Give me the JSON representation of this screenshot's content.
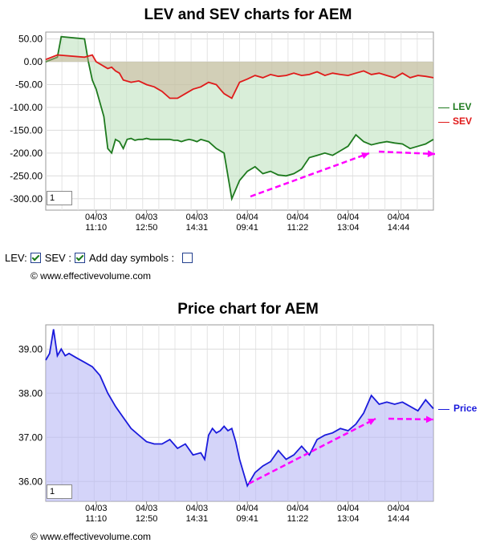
{
  "chart_data": [
    {
      "type": "area",
      "title": "LEV and SEV charts for AEM",
      "yticks": [
        "50.00",
        "0.00",
        "-50.00",
        "-100.00",
        "-150.00",
        "-200.00",
        "-250.00",
        "-300.00"
      ],
      "ylim": [
        -325,
        65
      ],
      "xticks": [
        {
          "date": "04/03",
          "time": "11:10"
        },
        {
          "date": "04/03",
          "time": "12:50"
        },
        {
          "date": "04/03",
          "time": "14:31"
        },
        {
          "date": "04/04",
          "time": "09:41"
        },
        {
          "date": "04/04",
          "time": "11:22"
        },
        {
          "date": "04/04",
          "time": "13:04"
        },
        {
          "date": "04/04",
          "time": "14:44"
        }
      ],
      "grid": true,
      "legend_position": "right",
      "input_value": "1",
      "series": [
        {
          "name": "LEV",
          "color": "#1e7a1e",
          "x": [
            0,
            0.03,
            0.04,
            0.1,
            0.11,
            0.12,
            0.13,
            0.14,
            0.15,
            0.16,
            0.17,
            0.18,
            0.19,
            0.2,
            0.21,
            0.22,
            0.23,
            0.24,
            0.25,
            0.26,
            0.27,
            0.28,
            0.29,
            0.3,
            0.32,
            0.33,
            0.34,
            0.35,
            0.36,
            0.37,
            0.38,
            0.39,
            0.4,
            0.42,
            0.44,
            0.46,
            0.48,
            0.5,
            0.52,
            0.54,
            0.56,
            0.58,
            0.6,
            0.62,
            0.64,
            0.66,
            0.68,
            0.7,
            0.72,
            0.74,
            0.76,
            0.78,
            0.8,
            0.82,
            0.84,
            0.86,
            0.88,
            0.9,
            0.92,
            0.94,
            0.96,
            0.98,
            1
          ],
          "values": [
            0,
            10,
            55,
            50,
            0,
            -40,
            -60,
            -90,
            -120,
            -190,
            -200,
            -170,
            -175,
            -190,
            -170,
            -168,
            -172,
            -170,
            -170,
            -168,
            -170,
            -170,
            -170,
            -170,
            -170,
            -172,
            -172,
            -175,
            -172,
            -170,
            -172,
            -175,
            -170,
            -175,
            -190,
            -200,
            -300,
            -260,
            -240,
            -230,
            -245,
            -240,
            -248,
            -250,
            -245,
            -235,
            -210,
            -205,
            -200,
            -205,
            -195,
            -185,
            -160,
            -175,
            -182,
            -178,
            -175,
            -178,
            -180,
            -190,
            -185,
            -180,
            -170
          ]
        },
        {
          "name": "SEV",
          "color": "#e01a1a",
          "x": [
            0,
            0.03,
            0.1,
            0.12,
            0.13,
            0.14,
            0.15,
            0.16,
            0.17,
            0.18,
            0.19,
            0.2,
            0.22,
            0.24,
            0.26,
            0.28,
            0.3,
            0.32,
            0.34,
            0.36,
            0.38,
            0.4,
            0.42,
            0.44,
            0.46,
            0.48,
            0.5,
            0.52,
            0.54,
            0.56,
            0.58,
            0.6,
            0.62,
            0.64,
            0.66,
            0.68,
            0.7,
            0.72,
            0.74,
            0.76,
            0.78,
            0.8,
            0.82,
            0.84,
            0.86,
            0.88,
            0.9,
            0.92,
            0.94,
            0.96,
            0.98,
            1
          ],
          "values": [
            5,
            15,
            10,
            15,
            0,
            -5,
            -10,
            -15,
            -12,
            -20,
            -25,
            -40,
            -45,
            -42,
            -50,
            -55,
            -65,
            -80,
            -80,
            -70,
            -60,
            -55,
            -45,
            -50,
            -70,
            -80,
            -45,
            -38,
            -30,
            -35,
            -28,
            -32,
            -30,
            -25,
            -30,
            -28,
            -22,
            -30,
            -25,
            -28,
            -30,
            -25,
            -20,
            -28,
            -25,
            -30,
            -35,
            -25,
            -35,
            -30,
            -32,
            -35
          ]
        }
      ]
    },
    {
      "type": "area",
      "title": "Price chart for AEM",
      "yticks": [
        "39.00",
        "38.00",
        "37.00",
        "36.00"
      ],
      "ylim": [
        35.55,
        39.55
      ],
      "xticks": [
        {
          "date": "04/03",
          "time": "11:10"
        },
        {
          "date": "04/03",
          "time": "12:50"
        },
        {
          "date": "04/03",
          "time": "14:31"
        },
        {
          "date": "04/04",
          "time": "09:41"
        },
        {
          "date": "04/04",
          "time": "11:22"
        },
        {
          "date": "04/04",
          "time": "13:04"
        },
        {
          "date": "04/04",
          "time": "14:44"
        }
      ],
      "grid": true,
      "legend_position": "right",
      "input_value": "1",
      "series": [
        {
          "name": "Price",
          "color": "#1a1adc",
          "x": [
            0,
            0.01,
            0.02,
            0.03,
            0.04,
            0.05,
            0.06,
            0.08,
            0.1,
            0.12,
            0.14,
            0.16,
            0.18,
            0.2,
            0.22,
            0.24,
            0.26,
            0.28,
            0.3,
            0.32,
            0.34,
            0.36,
            0.38,
            0.4,
            0.41,
            0.42,
            0.43,
            0.44,
            0.45,
            0.46,
            0.47,
            0.48,
            0.49,
            0.5,
            0.52,
            0.54,
            0.56,
            0.58,
            0.6,
            0.62,
            0.64,
            0.66,
            0.68,
            0.7,
            0.72,
            0.74,
            0.76,
            0.78,
            0.8,
            0.82,
            0.84,
            0.86,
            0.88,
            0.9,
            0.92,
            0.94,
            0.96,
            0.98,
            1
          ],
          "values": [
            38.75,
            38.9,
            39.45,
            38.85,
            39.0,
            38.85,
            38.9,
            38.8,
            38.7,
            38.6,
            38.4,
            38.0,
            37.7,
            37.45,
            37.2,
            37.05,
            36.9,
            36.85,
            36.85,
            36.95,
            36.75,
            36.85,
            36.6,
            36.65,
            36.5,
            37.05,
            37.2,
            37.1,
            37.15,
            37.25,
            37.15,
            37.2,
            36.9,
            36.5,
            35.9,
            36.2,
            36.35,
            36.45,
            36.7,
            36.5,
            36.6,
            36.8,
            36.6,
            36.95,
            37.05,
            37.1,
            37.2,
            37.15,
            37.3,
            37.55,
            37.95,
            37.75,
            37.8,
            37.75,
            37.8,
            37.7,
            37.6,
            37.85,
            37.65
          ]
        }
      ]
    }
  ],
  "controls": {
    "lev_label": "LEV:",
    "sev_label": "SEV :",
    "day_symbols_label": "Add day symbols :",
    "lev_checked": true,
    "sev_checked": true,
    "day_symbols_checked": false
  },
  "copyright": "© www.effectivevolume.com",
  "annotation_color": "#ff00ff"
}
